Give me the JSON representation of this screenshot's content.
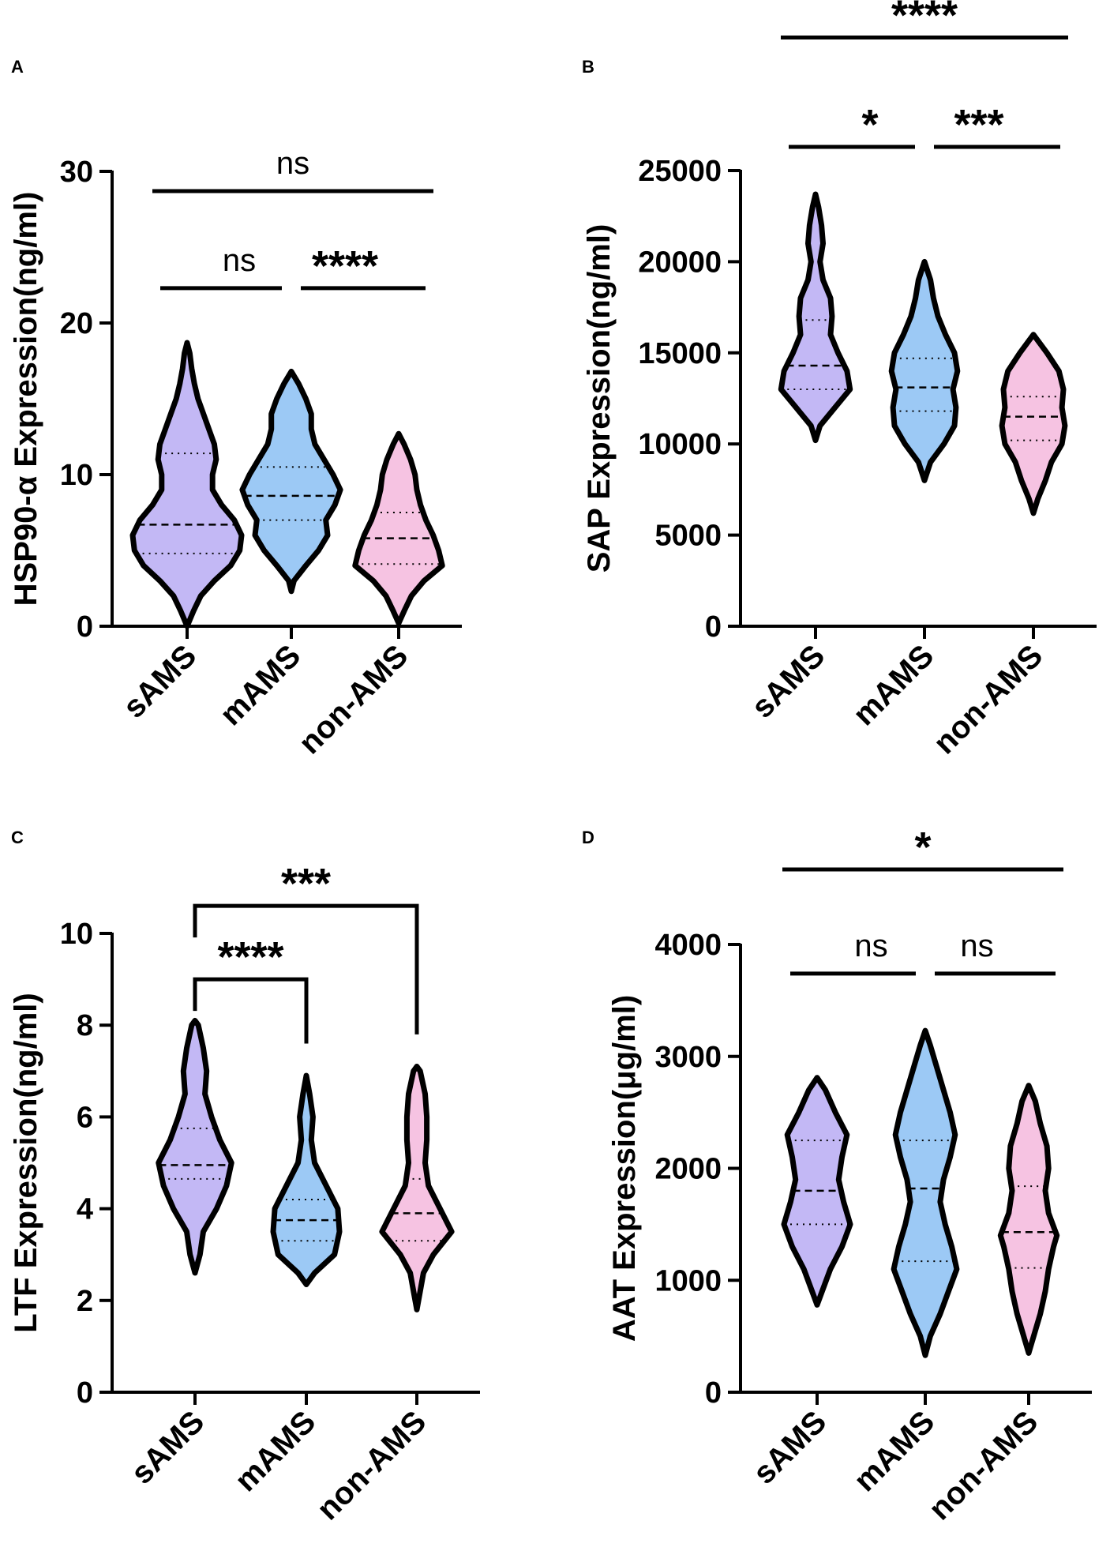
{
  "figure": {
    "background": "#ffffff"
  },
  "colors": {
    "sAMS": "#c3b8f5",
    "mAMS": "#9cc9f5",
    "non-AMS": "#f6c3e2"
  },
  "chart_data": [
    {
      "panel": "A",
      "type": "violin",
      "ylabel": "HSP90-α Expression(ng/ml)",
      "ylim": [
        0,
        30
      ],
      "yticks": [
        0,
        10,
        20,
        30
      ],
      "categories": [
        "sAMS",
        "mAMS",
        "non-AMS"
      ],
      "violins": [
        {
          "group": "sAMS",
          "color": "sAMS",
          "median": 6.7,
          "q1": 4.8,
          "q3": 11.4,
          "profile": [
            [
              0,
              0
            ],
            [
              1,
              7
            ],
            [
              2,
              15
            ],
            [
              3,
              30
            ],
            [
              4,
              48
            ],
            [
              5,
              58
            ],
            [
              6,
              60
            ],
            [
              7,
              52
            ],
            [
              8,
              38
            ],
            [
              9,
              28
            ],
            [
              10,
              28
            ],
            [
              11,
              32
            ],
            [
              12,
              30
            ],
            [
              13,
              24
            ],
            [
              14,
              18
            ],
            [
              15,
              12
            ],
            [
              16,
              8
            ],
            [
              17,
              5
            ],
            [
              18,
              3
            ],
            [
              18.7,
              0
            ]
          ]
        },
        {
          "group": "mAMS",
          "color": "mAMS",
          "median": 8.6,
          "q1": 7.0,
          "q3": 10.5,
          "profile": [
            [
              2.3,
              0
            ],
            [
              3,
              3
            ],
            [
              4,
              16
            ],
            [
              5,
              30
            ],
            [
              6,
              40
            ],
            [
              7,
              38
            ],
            [
              8,
              48
            ],
            [
              9,
              54
            ],
            [
              10,
              46
            ],
            [
              11,
              36
            ],
            [
              12,
              26
            ],
            [
              13,
              22
            ],
            [
              14,
              22
            ],
            [
              15,
              16
            ],
            [
              16,
              8
            ],
            [
              16.8,
              0
            ]
          ]
        },
        {
          "group": "non-AMS",
          "color": "non-AMS",
          "median": 5.8,
          "q1": 4.1,
          "q3": 7.5,
          "profile": [
            [
              0.2,
              0
            ],
            [
              1,
              6
            ],
            [
              2,
              14
            ],
            [
              3,
              28
            ],
            [
              4,
              48
            ],
            [
              5,
              44
            ],
            [
              6,
              38
            ],
            [
              7,
              30
            ],
            [
              8,
              24
            ],
            [
              9,
              20
            ],
            [
              10,
              18
            ],
            [
              11,
              13
            ],
            [
              12,
              6
            ],
            [
              12.7,
              0
            ]
          ]
        }
      ],
      "comparisons": [
        {
          "from": 0,
          "to": 1,
          "label": "ns",
          "style": "line",
          "value": 22.3
        },
        {
          "from": 1,
          "to": 2,
          "label": "****",
          "style": "line",
          "value": 22.3
        },
        {
          "from": 0,
          "to": 2,
          "label": "ns",
          "style": "line",
          "value": 28.7
        }
      ]
    },
    {
      "panel": "B",
      "type": "violin",
      "ylabel": "SAP Expression(ng/ml)",
      "ylim": [
        0,
        25000
      ],
      "yticks": [
        0,
        5000,
        10000,
        15000,
        20000,
        25000
      ],
      "categories": [
        "sAMS",
        "mAMS",
        "non-AMS"
      ],
      "violins": [
        {
          "group": "sAMS",
          "color": "sAMS",
          "median": 14300,
          "q1": 13000,
          "q3": 16800,
          "profile": [
            [
              10200,
              0
            ],
            [
              11000,
              6
            ],
            [
              12000,
              26
            ],
            [
              13000,
              46
            ],
            [
              14000,
              42
            ],
            [
              15000,
              30
            ],
            [
              16000,
              20
            ],
            [
              17000,
              22
            ],
            [
              18000,
              20
            ],
            [
              19000,
              10
            ],
            [
              20000,
              6
            ],
            [
              21000,
              10
            ],
            [
              22000,
              8
            ],
            [
              23000,
              4
            ],
            [
              23700,
              0
            ]
          ]
        },
        {
          "group": "mAMS",
          "color": "mAMS",
          "median": 13100,
          "q1": 11800,
          "q3": 14700,
          "profile": [
            [
              8000,
              0
            ],
            [
              9000,
              8
            ],
            [
              10000,
              26
            ],
            [
              11000,
              40
            ],
            [
              12000,
              42
            ],
            [
              13000,
              38
            ],
            [
              14000,
              44
            ],
            [
              15000,
              40
            ],
            [
              16000,
              28
            ],
            [
              17000,
              18
            ],
            [
              18000,
              12
            ],
            [
              19000,
              8
            ],
            [
              20000,
              0
            ]
          ]
        },
        {
          "group": "non-AMS",
          "color": "non-AMS",
          "median": 11500,
          "q1": 10200,
          "q3": 12600,
          "profile": [
            [
              6200,
              0
            ],
            [
              7000,
              6
            ],
            [
              8000,
              16
            ],
            [
              9000,
              24
            ],
            [
              10000,
              38
            ],
            [
              11000,
              42
            ],
            [
              12000,
              38
            ],
            [
              13000,
              40
            ],
            [
              14000,
              34
            ],
            [
              15000,
              18
            ],
            [
              16000,
              0
            ]
          ]
        }
      ],
      "comparisons": [
        {
          "from": 0,
          "to": 1,
          "label": "*",
          "style": "line",
          "value": 26300
        },
        {
          "from": 1,
          "to": 2,
          "label": "***",
          "style": "line",
          "value": 26300
        },
        {
          "from": 0,
          "to": 2,
          "label": "****",
          "style": "line",
          "value": 32300
        }
      ]
    },
    {
      "panel": "C",
      "type": "violin",
      "ylabel": "LTF Expression(ng/ml)",
      "ylim": [
        0,
        10
      ],
      "yticks": [
        0,
        2,
        4,
        6,
        8,
        10
      ],
      "categories": [
        "sAMS",
        "mAMS",
        "non-AMS"
      ],
      "violins": [
        {
          "group": "sAMS",
          "color": "sAMS",
          "median": 4.95,
          "q1": 4.65,
          "q3": 5.75,
          "profile": [
            [
              2.6,
              0
            ],
            [
              3.0,
              6
            ],
            [
              3.5,
              10
            ],
            [
              4.0,
              26
            ],
            [
              4.5,
              38
            ],
            [
              5.0,
              44
            ],
            [
              5.5,
              30
            ],
            [
              6.0,
              20
            ],
            [
              6.5,
              12
            ],
            [
              7.0,
              14
            ],
            [
              7.5,
              10
            ],
            [
              8.0,
              4
            ],
            [
              8.1,
              0
            ]
          ]
        },
        {
          "group": "mAMS",
          "color": "mAMS",
          "median": 3.75,
          "q1": 3.3,
          "q3": 4.2,
          "profile": [
            [
              2.35,
              0
            ],
            [
              2.6,
              10
            ],
            [
              3.0,
              34
            ],
            [
              3.5,
              40
            ],
            [
              4.0,
              38
            ],
            [
              4.5,
              24
            ],
            [
              5.0,
              10
            ],
            [
              5.5,
              6
            ],
            [
              6.0,
              8
            ],
            [
              6.5,
              4
            ],
            [
              6.9,
              0
            ]
          ]
        },
        {
          "group": "non-AMS",
          "color": "non-AMS",
          "median": 3.9,
          "q1": 3.3,
          "q3": 4.65,
          "profile": [
            [
              1.8,
              0
            ],
            [
              2.2,
              4
            ],
            [
              2.6,
              8
            ],
            [
              3.0,
              20
            ],
            [
              3.5,
              42
            ],
            [
              4.0,
              28
            ],
            [
              4.5,
              14
            ],
            [
              5.0,
              10
            ],
            [
              5.5,
              12
            ],
            [
              6.0,
              12
            ],
            [
              6.5,
              10
            ],
            [
              7.0,
              4
            ],
            [
              7.1,
              0
            ]
          ]
        }
      ],
      "comparisons": [
        {
          "from": 0,
          "to": 1,
          "label": "****",
          "style": "bracket",
          "value": 9.0,
          "dropTo": 7.6
        },
        {
          "from": 0,
          "to": 2,
          "label": "***",
          "style": "bracket",
          "value": 10.6,
          "dropTo": 7.8
        }
      ]
    },
    {
      "panel": "D",
      "type": "violin",
      "ylabel": "AAT Expression(μg/ml)",
      "ylim": [
        0,
        4000
      ],
      "yticks": [
        0,
        1000,
        2000,
        3000,
        4000
      ],
      "categories": [
        "sAMS",
        "mAMS",
        "non-AMS"
      ],
      "violins": [
        {
          "group": "sAMS",
          "color": "sAMS",
          "median": 1800,
          "q1": 1500,
          "q3": 2250,
          "profile": [
            [
              780,
              0
            ],
            [
              900,
              6
            ],
            [
              1100,
              16
            ],
            [
              1300,
              30
            ],
            [
              1500,
              40
            ],
            [
              1700,
              32
            ],
            [
              1900,
              26
            ],
            [
              2100,
              30
            ],
            [
              2300,
              36
            ],
            [
              2500,
              22
            ],
            [
              2700,
              10
            ],
            [
              2810,
              0
            ]
          ]
        },
        {
          "group": "mAMS",
          "color": "mAMS",
          "median": 1820,
          "q1": 1170,
          "q3": 2250,
          "profile": [
            [
              330,
              0
            ],
            [
              500,
              6
            ],
            [
              700,
              18
            ],
            [
              900,
              28
            ],
            [
              1100,
              38
            ],
            [
              1300,
              32
            ],
            [
              1500,
              24
            ],
            [
              1700,
              18
            ],
            [
              1900,
              22
            ],
            [
              2100,
              30
            ],
            [
              2300,
              36
            ],
            [
              2500,
              30
            ],
            [
              2700,
              22
            ],
            [
              2900,
              14
            ],
            [
              3100,
              6
            ],
            [
              3230,
              0
            ]
          ]
        },
        {
          "group": "non-AMS",
          "color": "non-AMS",
          "median": 1430,
          "q1": 1110,
          "q3": 1840,
          "profile": [
            [
              350,
              0
            ],
            [
              500,
              6
            ],
            [
              700,
              14
            ],
            [
              900,
              20
            ],
            [
              1100,
              24
            ],
            [
              1300,
              30
            ],
            [
              1400,
              34
            ],
            [
              1600,
              24
            ],
            [
              1800,
              20
            ],
            [
              2000,
              24
            ],
            [
              2200,
              22
            ],
            [
              2400,
              14
            ],
            [
              2600,
              8
            ],
            [
              2740,
              0
            ]
          ]
        }
      ],
      "comparisons": [
        {
          "from": 0,
          "to": 1,
          "label": "ns",
          "style": "line",
          "value": 3740
        },
        {
          "from": 1,
          "to": 2,
          "label": "ns",
          "style": "line",
          "value": 3740
        },
        {
          "from": 0,
          "to": 2,
          "label": "*",
          "style": "line",
          "value": 4670
        }
      ]
    }
  ]
}
